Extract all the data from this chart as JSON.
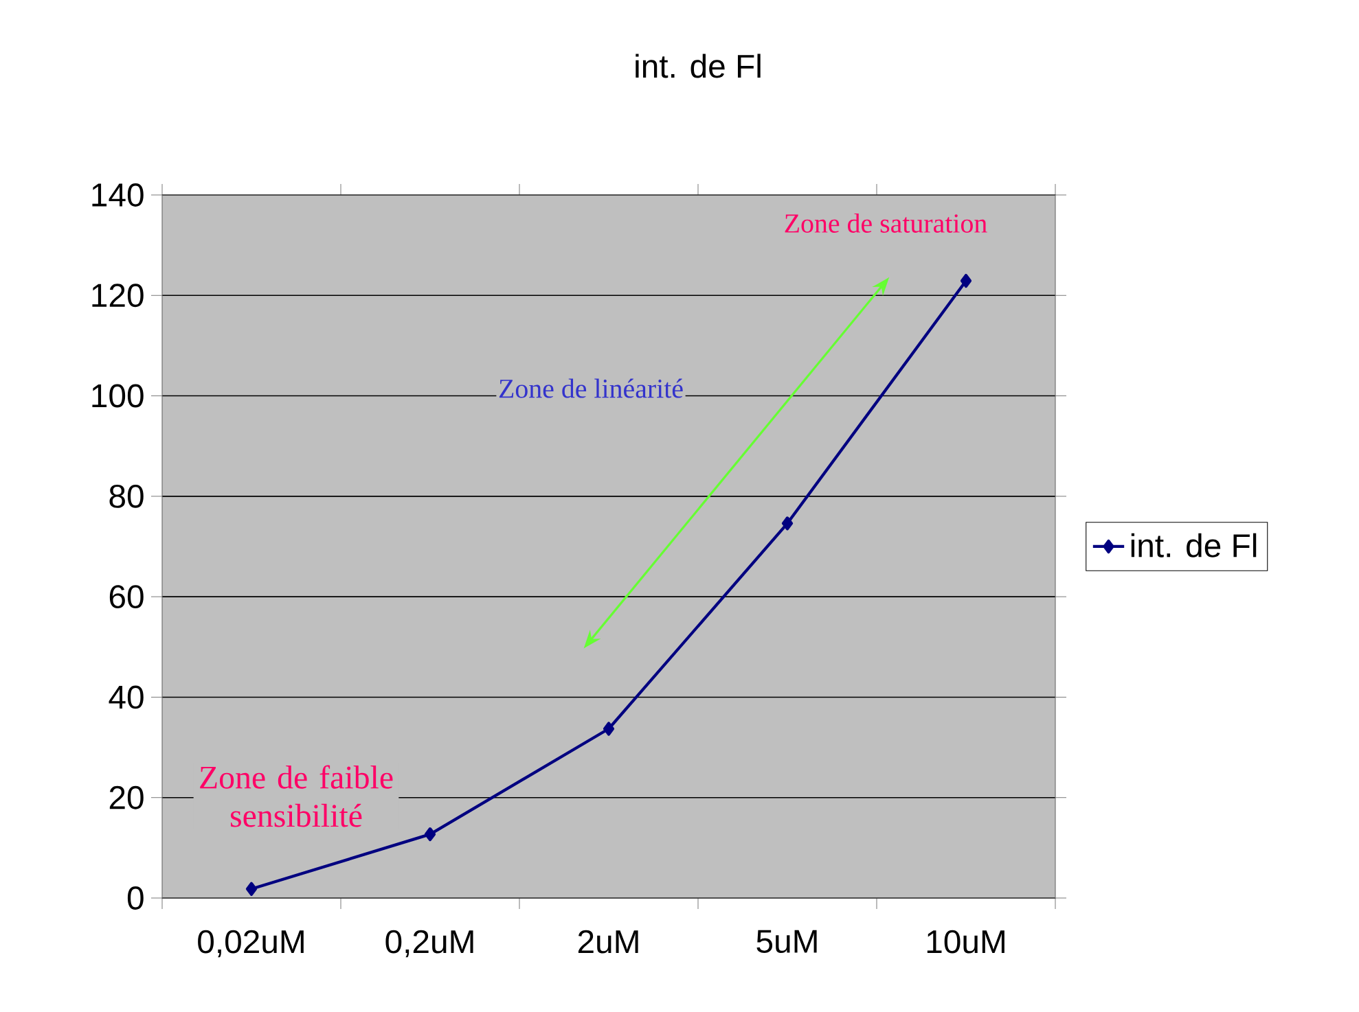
{
  "chart_data": {
    "type": "line",
    "title": "int. de Fl",
    "categories": [
      "0,02uM",
      "0,2uM",
      "2uM",
      "5uM",
      "10uM"
    ],
    "series": [
      {
        "name": "int. de Fl",
        "color": "#000080",
        "values": [
          1.8,
          12.7,
          33.7,
          74.6,
          122.9
        ]
      }
    ],
    "ylim": [
      0,
      140
    ],
    "yticks": [
      0,
      20,
      40,
      60,
      80,
      100,
      120,
      140
    ],
    "grid": "y",
    "legend": "right",
    "marker": "diamond",
    "annotations": [
      "Zone de saturation",
      "Zone de linéarité",
      "Zone de faible sensibilité"
    ]
  }
}
